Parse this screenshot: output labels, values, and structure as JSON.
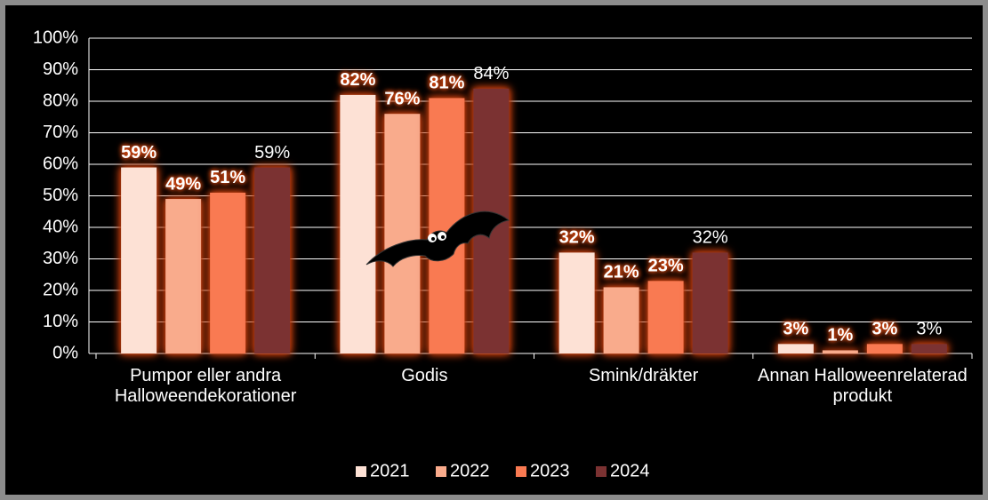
{
  "chart_data": {
    "type": "bar",
    "categories": [
      "Pumpor eller andra Halloweendekorationer",
      "Godis",
      "Smink/dräkter",
      "Annan Halloweenrelaterad produkt"
    ],
    "series": [
      {
        "name": "2021",
        "color": "#fde1d5",
        "values": [
          59,
          82,
          32,
          3
        ],
        "value_labels": [
          "59%",
          "82%",
          "32%",
          "3%"
        ]
      },
      {
        "name": "2022",
        "color": "#f9ab8c",
        "values": [
          49,
          76,
          21,
          1
        ],
        "value_labels": [
          "49%",
          "76%",
          "21%",
          "1%"
        ]
      },
      {
        "name": "2023",
        "color": "#f97a52",
        "values": [
          51,
          81,
          23,
          3
        ],
        "value_labels": [
          "51%",
          "81%",
          "23%",
          "3%"
        ]
      },
      {
        "name": "2024",
        "color": "#7b3232",
        "values": [
          59,
          84,
          32,
          3
        ],
        "value_labels": [
          "59%",
          "84%",
          "32%",
          "3%"
        ]
      }
    ],
    "ylim": [
      0,
      100
    ],
    "yticks": [
      {
        "value": 0,
        "label": "0%"
      },
      {
        "value": 10,
        "label": "10%"
      },
      {
        "value": 20,
        "label": "20%"
      },
      {
        "value": 30,
        "label": "30%"
      },
      {
        "value": 40,
        "label": "40%"
      },
      {
        "value": 50,
        "label": "50%"
      },
      {
        "value": 60,
        "label": "60%"
      },
      {
        "value": 70,
        "label": "70%"
      },
      {
        "value": 80,
        "label": "80%"
      },
      {
        "value": 90,
        "label": "90%"
      },
      {
        "value": 100,
        "label": "100%"
      }
    ],
    "grid": true,
    "legend": "bottom"
  }
}
